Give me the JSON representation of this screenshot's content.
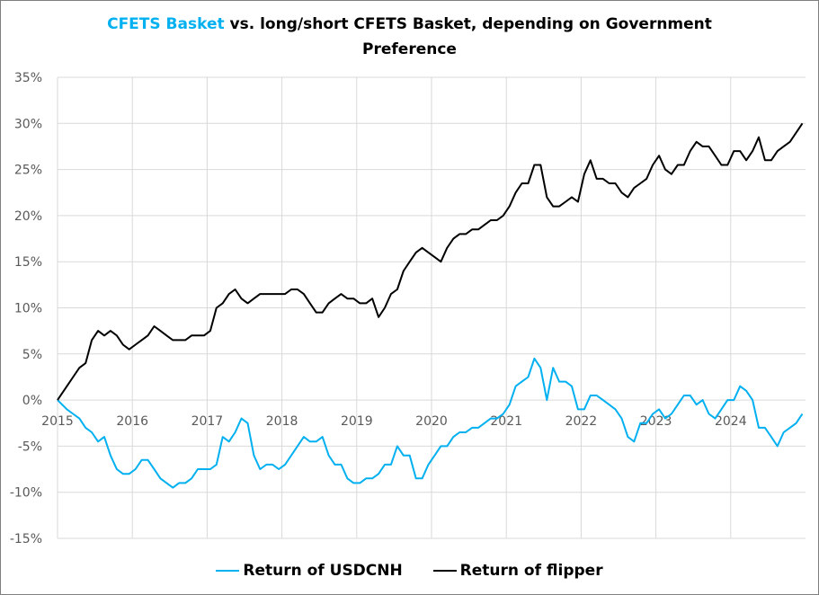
{
  "chart_data": {
    "type": "line",
    "title_highlight": "CFETS Basket",
    "title_rest_line1": " vs. long/short  CFETS Basket, depending on Government",
    "title_line2": "Preference",
    "xlabel": "",
    "ylabel": "",
    "ylim": [
      -15,
      35
    ],
    "yticks": [
      35,
      30,
      25,
      20,
      15,
      10,
      5,
      0,
      -5,
      -10,
      -15
    ],
    "ytick_labels": [
      "35%",
      "30%",
      "25%",
      "20%",
      "15%",
      "10%",
      "5%",
      "0%",
      "-5%",
      "-10%",
      "-15%"
    ],
    "xticks": [
      "2015",
      "2016",
      "2017",
      "2018",
      "2019",
      "2020",
      "2021",
      "2022",
      "2023",
      "2024"
    ],
    "x_start_year": 2015,
    "x_frequency": "monthly",
    "grid": true,
    "legend_position": "bottom",
    "series": [
      {
        "name": "Return of USDCNH",
        "color": "#00b0f0",
        "values": [
          0,
          -1,
          -1.5,
          -2,
          -3,
          -3.5,
          -4.5,
          -4,
          -6,
          -7.5,
          -8,
          -8,
          -7.5,
          -6.5,
          -6.5,
          -7.5,
          -8.5,
          -9,
          -9.5,
          -9,
          -9,
          -8.5,
          -7.5,
          -7.5,
          -7.5,
          -7,
          -4,
          -4.5,
          -3.5,
          -2,
          -2.5,
          -6,
          -7.5,
          -7,
          -7,
          -7.5,
          -7,
          -6,
          -5,
          -4,
          -4.5,
          -4.5,
          -4,
          -6,
          -7,
          -7,
          -8.5,
          -9,
          -9,
          -8.5,
          -8.5,
          -8,
          -7,
          -7,
          -5,
          -6,
          -6,
          -8.5,
          -8.5,
          -7,
          -6,
          -5,
          -5,
          -4,
          -3.5,
          -3.5,
          -3,
          -3,
          -2.5,
          -2,
          -2,
          -1.5,
          -0.5,
          1.5,
          2,
          2.5,
          4.5,
          3.5,
          0,
          3.5,
          2,
          2,
          1.5,
          -1,
          -1,
          0.5,
          0.5,
          0,
          -0.5,
          -1,
          -2,
          -4,
          -4.5,
          -2.5,
          -2.5,
          -1.5,
          -1,
          -2,
          -1.5,
          -0.5,
          0.5,
          0.5,
          -0.5,
          0,
          -1.5,
          -2,
          -1,
          0,
          0,
          1.5,
          1,
          0,
          -3,
          -3,
          -4,
          -5,
          -3.5,
          -3,
          -2.5,
          -1.5
        ]
      },
      {
        "name": "Return of flipper",
        "color": "#000000",
        "values": [
          0,
          1.5,
          2.5,
          3.5,
          4,
          6.5,
          7.5,
          7,
          7.5,
          7,
          6,
          5.5,
          6,
          6.5,
          7,
          8,
          7.5,
          7,
          6.5,
          6.5,
          6.5,
          7,
          7,
          7,
          7.5,
          10,
          10.5,
          11.5,
          12,
          11,
          10.5,
          11,
          11.5,
          11.5,
          11.5,
          11.5,
          11.5,
          12,
          12,
          11.5,
          10.5,
          9.5,
          9.5,
          10.5,
          11,
          11.5,
          11,
          11,
          10.5,
          10.5,
          11,
          9,
          10,
          11.5,
          12,
          14,
          15,
          16,
          16.5,
          16,
          15.5,
          15,
          16.5,
          17.5,
          18,
          18,
          18.5,
          18.5,
          19,
          19.5,
          19.5,
          20,
          21,
          22.5,
          23.5,
          23.5,
          25.5,
          25.5,
          22,
          21,
          21,
          21.5,
          22,
          21.5,
          24.5,
          26,
          24,
          24,
          23.5,
          23.5,
          22.5,
          22,
          23,
          23.5,
          24,
          25.5,
          26.5,
          25,
          24.5,
          25.5,
          25.5,
          27,
          28,
          27.5,
          27.5,
          26.5,
          25.5,
          25.5,
          27,
          27,
          26,
          27,
          28.5,
          26,
          26,
          27,
          27.5,
          28,
          29,
          30
        ]
      }
    ]
  }
}
